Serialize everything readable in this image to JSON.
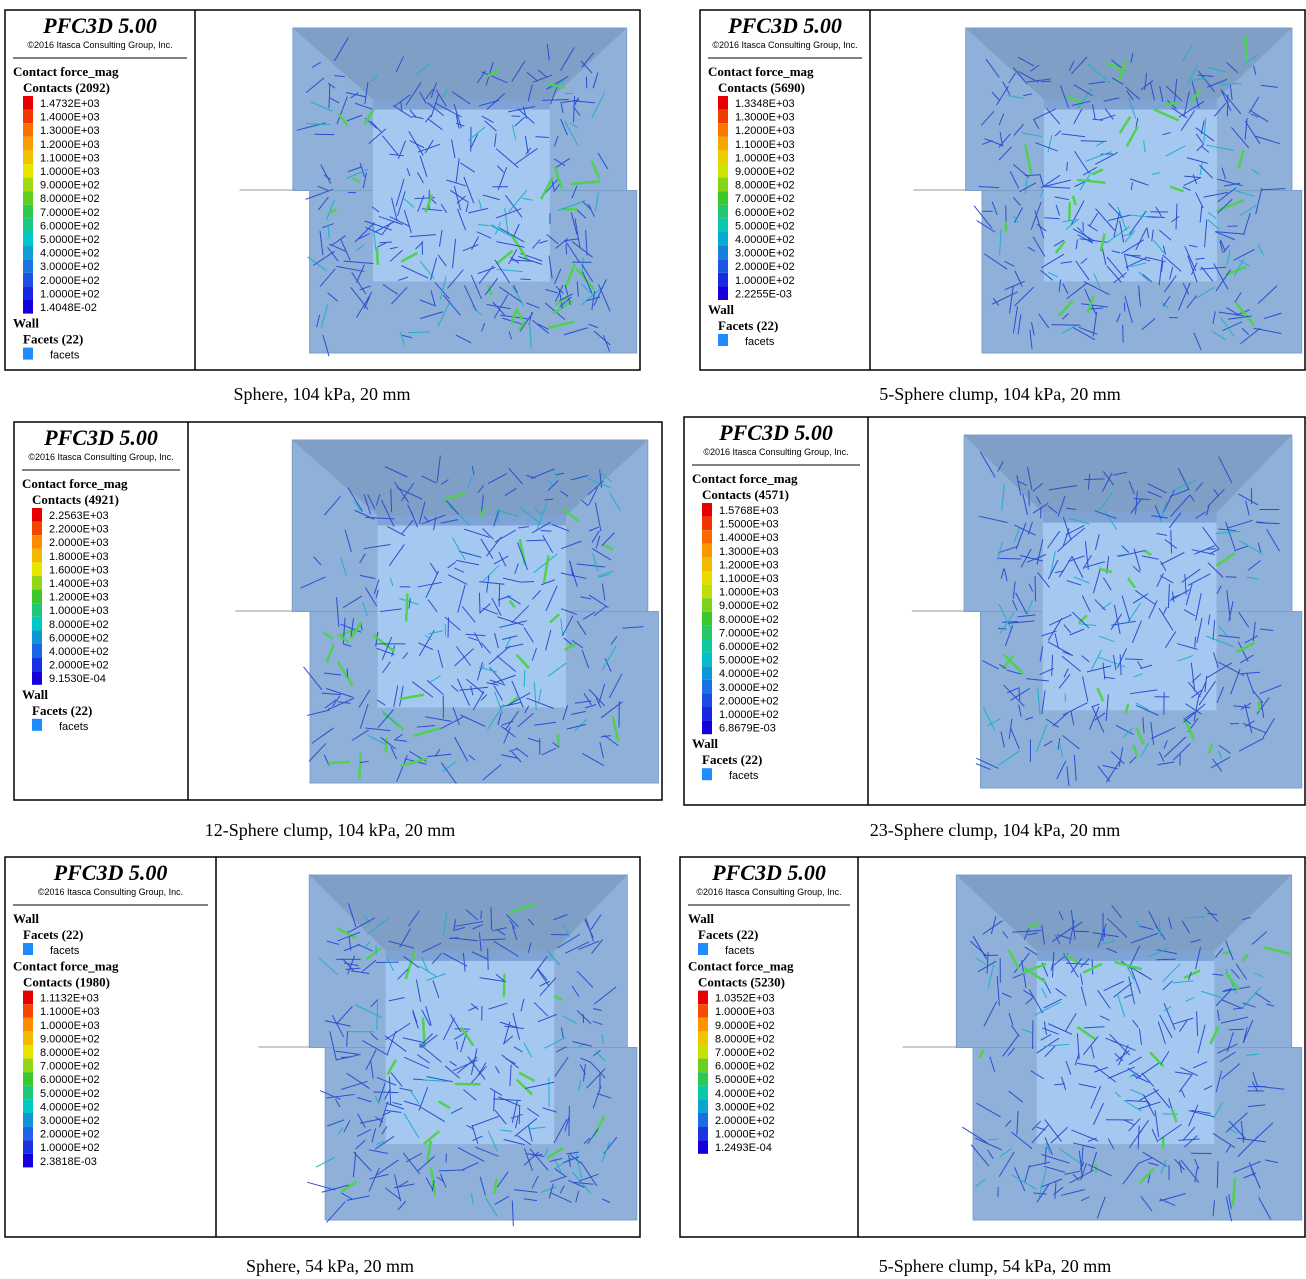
{
  "panels": [
    {
      "title": "PFC3D 5.00",
      "copyright": "©2016 Itasca Consulting Group, Inc.",
      "sections": [
        {
          "heading": "Contact force_mag",
          "subheading": "Contacts (2092)",
          "labels": [
            "1.4732E+03",
            "1.4000E+03",
            "1.3000E+03",
            "1.2000E+03",
            "1.1000E+03",
            "1.0000E+03",
            "9.0000E+02",
            "8.0000E+02",
            "7.0000E+02",
            "6.0000E+02",
            "5.0000E+02",
            "4.0000E+02",
            "3.0000E+02",
            "2.0000E+02",
            "1.0000E+02",
            "1.4048E-02"
          ]
        },
        {
          "heading": "Wall",
          "subheading": "Facets (22)",
          "labels": [
            "facets"
          ]
        }
      ],
      "caption": "Sphere, 104 kPa, 20 mm"
    },
    {
      "title": "PFC3D 5.00",
      "copyright": "©2016 Itasca Consulting Group, Inc.",
      "sections": [
        {
          "heading": "Contact force_mag",
          "subheading": "Contacts (5690)",
          "labels": [
            "1.3348E+03",
            "1.3000E+03",
            "1.2000E+03",
            "1.1000E+03",
            "1.0000E+03",
            "9.0000E+02",
            "8.0000E+02",
            "7.0000E+02",
            "6.0000E+02",
            "5.0000E+02",
            "4.0000E+02",
            "3.0000E+02",
            "2.0000E+02",
            "1.0000E+02",
            "2.2255E-03"
          ]
        },
        {
          "heading": "Wall",
          "subheading": "Facets (22)",
          "labels": [
            "facets"
          ]
        }
      ],
      "caption": "5-Sphere clump, 104 kPa, 20 mm"
    },
    {
      "title": "PFC3D 5.00",
      "copyright": "©2016 Itasca Consulting Group, Inc.",
      "sections": [
        {
          "heading": "Contact force_mag",
          "subheading": "Contacts (4921)",
          "labels": [
            "2.2563E+03",
            "2.2000E+03",
            "2.0000E+03",
            "1.8000E+03",
            "1.6000E+03",
            "1.4000E+03",
            "1.2000E+03",
            "1.0000E+03",
            "8.0000E+02",
            "6.0000E+02",
            "4.0000E+02",
            "2.0000E+02",
            "9.1530E-04"
          ]
        },
        {
          "heading": "Wall",
          "subheading": "Facets (22)",
          "labels": [
            "facets"
          ]
        }
      ],
      "caption": "12-Sphere clump, 104 kPa, 20 mm"
    },
    {
      "title": "PFC3D 5.00",
      "copyright": "©2016 Itasca Consulting Group, Inc.",
      "sections": [
        {
          "heading": "Contact force_mag",
          "subheading": "Contacts (4571)",
          "labels": [
            "1.5768E+03",
            "1.5000E+03",
            "1.4000E+03",
            "1.3000E+03",
            "1.2000E+03",
            "1.1000E+03",
            "1.0000E+03",
            "9.0000E+02",
            "8.0000E+02",
            "7.0000E+02",
            "6.0000E+02",
            "5.0000E+02",
            "4.0000E+02",
            "3.0000E+02",
            "2.0000E+02",
            "1.0000E+02",
            "6.8679E-03"
          ]
        },
        {
          "heading": "Wall",
          "subheading": "Facets (22)",
          "labels": [
            "facets"
          ]
        }
      ],
      "caption": "23-Sphere clump, 104 kPa, 20 mm"
    },
    {
      "title": "PFC3D 5.00",
      "copyright": "©2016 Itasca Consulting Group, Inc.",
      "sections": [
        {
          "heading": "Wall",
          "subheading": "Facets (22)",
          "labels": [
            "facets"
          ]
        },
        {
          "heading": "Contact force_mag",
          "subheading": "Contacts (1980)",
          "labels": [
            "1.1132E+03",
            "1.1000E+03",
            "1.0000E+03",
            "9.0000E+02",
            "8.0000E+02",
            "7.0000E+02",
            "6.0000E+02",
            "5.0000E+02",
            "4.0000E+02",
            "3.0000E+02",
            "2.0000E+02",
            "1.0000E+02",
            "2.3818E-03"
          ]
        }
      ],
      "caption": "Sphere, 54 kPa, 20 mm"
    },
    {
      "title": "PFC3D 5.00",
      "copyright": "©2016 Itasca Consulting Group, Inc.",
      "sections": [
        {
          "heading": "Wall",
          "subheading": "Facets (22)",
          "labels": [
            "facets"
          ]
        },
        {
          "heading": "Contact force_mag",
          "subheading": "Contacts (5230)",
          "labels": [
            "1.0352E+03",
            "1.0000E+03",
            "9.0000E+02",
            "8.0000E+02",
            "7.0000E+02",
            "6.0000E+02",
            "5.0000E+02",
            "4.0000E+02",
            "3.0000E+02",
            "2.0000E+02",
            "1.0000E+02",
            "1.2493E-04"
          ]
        }
      ],
      "caption": "5-Sphere clump, 54 kPa, 20 mm"
    }
  ]
}
